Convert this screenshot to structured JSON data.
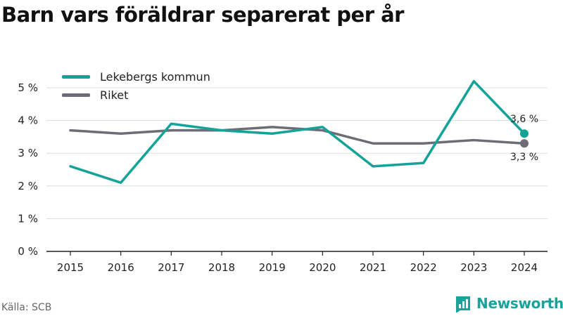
{
  "title": "Barn vars föräldrar separerat per år",
  "source": "Källa: SCB",
  "brand": {
    "name": "Newsworthy",
    "icon": "newsworthy-logo-icon"
  },
  "colors": {
    "lekeberg": "#14a399",
    "riket": "#6e6c76",
    "grid": "#dddddd",
    "axis": "#222222"
  },
  "chart_data": {
    "type": "line",
    "categories": [
      "2015",
      "2016",
      "2017",
      "2018",
      "2019",
      "2020",
      "2021",
      "2022",
      "2023",
      "2024"
    ],
    "ylim": [
      0,
      5
    ],
    "yticks": [
      0,
      1,
      2,
      3,
      4,
      5
    ],
    "ytick_labels": [
      "0 %",
      "1 %",
      "2 %",
      "3 %",
      "4 %",
      "5 %"
    ],
    "grid": true,
    "legend_position": "top-left",
    "series": [
      {
        "name": "Lekebergs kommun",
        "color_key": "lekeberg",
        "values": [
          2.6,
          2.1,
          3.9,
          3.7,
          3.6,
          3.8,
          2.6,
          2.7,
          5.2,
          3.6
        ],
        "end_label": "3,6 %"
      },
      {
        "name": "Riket",
        "color_key": "riket",
        "values": [
          3.7,
          3.6,
          3.7,
          3.7,
          3.8,
          3.7,
          3.3,
          3.3,
          3.4,
          3.3
        ],
        "end_label": "3,3 %"
      }
    ]
  }
}
